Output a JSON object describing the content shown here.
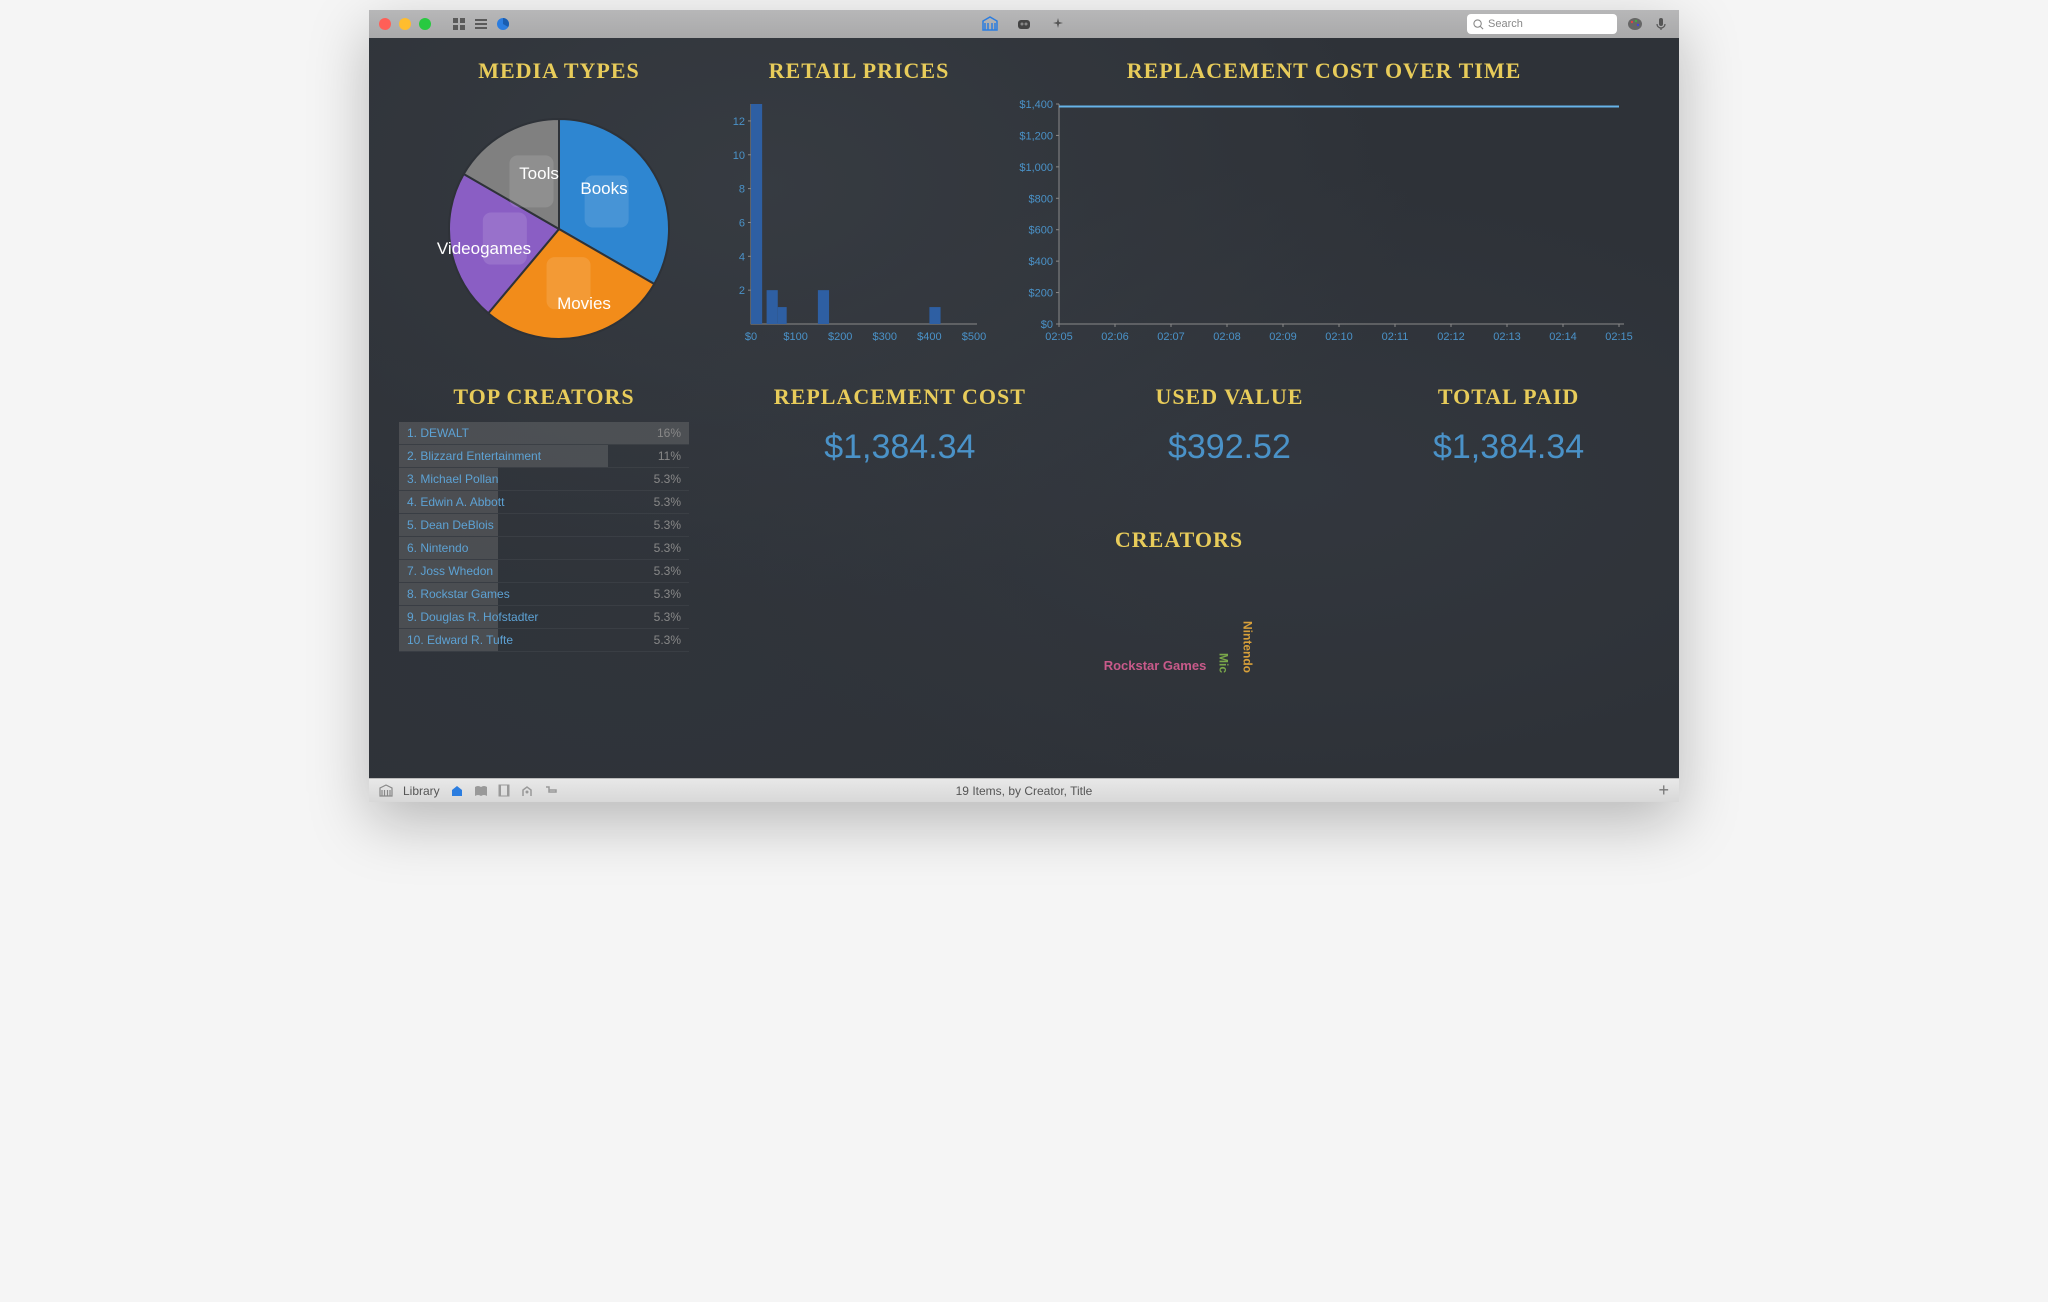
{
  "toolbar": {
    "search_placeholder": "Search",
    "center_icons": [
      "library-icon",
      "robot-icon",
      "magic-icon"
    ],
    "left_view_icons": [
      "grid-icon",
      "list-icon",
      "pie-icon"
    ],
    "right_icons": [
      "palette-icon",
      "mic-icon"
    ]
  },
  "media_types": {
    "title": "MEDIA TYPES",
    "type": "pie",
    "slices": [
      {
        "label": "Books",
        "value": 120,
        "color": "#2e86d1"
      },
      {
        "label": "Movies",
        "value": 100,
        "color": "#f28c1a"
      },
      {
        "label": "Videogames",
        "value": 80,
        "color": "#8a5ec4"
      },
      {
        "label": "Tools",
        "value": 60,
        "color": "#808080"
      }
    ],
    "label_color": "#ffffff",
    "label_fontsize": 17,
    "start_angle": -90
  },
  "retail_prices": {
    "title": "RETAIL PRICES",
    "type": "bar",
    "x_ticks": [
      "$0",
      "$100",
      "$200",
      "$300",
      "$400",
      "$500"
    ],
    "y_ticks": [
      2,
      4,
      6,
      8,
      10,
      12
    ],
    "ylim": [
      0,
      13
    ],
    "bars": [
      {
        "x": 0,
        "width": 25,
        "value": 13
      },
      {
        "x": 35,
        "width": 25,
        "value": 2
      },
      {
        "x": 60,
        "width": 20,
        "value": 1
      },
      {
        "x": 150,
        "width": 25,
        "value": 2
      },
      {
        "x": 400,
        "width": 25,
        "value": 1
      }
    ],
    "bar_color": "#2e5fa3",
    "axis_color": "#8a8a8a",
    "tick_label_color": "#4a92c8",
    "tick_fontsize": 11
  },
  "replacement_time": {
    "title": "REPLACEMENT COST OVER TIME",
    "type": "line",
    "x_ticks": [
      "02:05",
      "02:06",
      "02:07",
      "02:08",
      "02:09",
      "02:10",
      "02:11",
      "02:12",
      "02:13",
      "02:14",
      "02:15"
    ],
    "y_ticks": [
      "$0",
      "$200",
      "$400",
      "$600",
      "$800",
      "$1,000",
      "$1,200",
      "$1,400"
    ],
    "ylim": [
      0,
      1400
    ],
    "line_value": 1384,
    "line_color": "#66b3e8",
    "axis_color": "#8a8a8a",
    "tick_label_color": "#4a92c8",
    "tick_fontsize": 11
  },
  "top_creators": {
    "title": "TOP CREATORS",
    "rows": [
      {
        "rank": "1.",
        "name": "DEWALT",
        "pct": "16%",
        "bar": 100
      },
      {
        "rank": "2.",
        "name": "Blizzard Entertainment",
        "pct": "11%",
        "bar": 72
      },
      {
        "rank": "3.",
        "name": "Michael Pollan",
        "pct": "5.3%",
        "bar": 34
      },
      {
        "rank": "4.",
        "name": "Edwin A. Abbott",
        "pct": "5.3%",
        "bar": 34
      },
      {
        "rank": "5.",
        "name": "Dean DeBlois",
        "pct": "5.3%",
        "bar": 34
      },
      {
        "rank": "6.",
        "name": "Nintendo",
        "pct": "5.3%",
        "bar": 34
      },
      {
        "rank": "7.",
        "name": "Joss Whedon",
        "pct": "5.3%",
        "bar": 34
      },
      {
        "rank": "8.",
        "name": "Rockstar Games",
        "pct": "5.3%",
        "bar": 34
      },
      {
        "rank": "9.",
        "name": "Douglas R. Hofstadter",
        "pct": "5.3%",
        "bar": 34
      },
      {
        "rank": "10.",
        "name": "Edward R. Tufte",
        "pct": "5.3%",
        "bar": 34
      }
    ],
    "name_color": "#5da2d4",
    "pct_color": "#888888",
    "bar_color": "rgba(130,130,130,0.35)",
    "fontsize": 12
  },
  "stats": {
    "replacement_cost": {
      "title": "REPLACEMENT COST",
      "value": "$1,384.34"
    },
    "used_value": {
      "title": "USED VALUE",
      "value": "$392.52"
    },
    "total_paid": {
      "title": "TOTAL PAID",
      "value": "$1,384.34"
    },
    "value_color": "#4a92c8",
    "value_fontsize": 34
  },
  "creators_cloud": {
    "title": "CREATORS",
    "tags": [
      {
        "text": "Rockstar Games",
        "orient": "h",
        "color": "#c85a8a"
      },
      {
        "text": "Mic",
        "orient": "v",
        "color": "#7aa84a"
      },
      {
        "text": "Nintendo",
        "orient": "v",
        "color": "#d8a03a"
      }
    ]
  },
  "statusbar": {
    "library_label": "Library",
    "center_text": "19 Items, by Creator, Title",
    "icons": [
      "home-icon",
      "book-icon",
      "film-icon",
      "game-icon",
      "tool-icon"
    ]
  },
  "colors": {
    "title_color": "#e8cc5a",
    "background": "#2e3238"
  }
}
